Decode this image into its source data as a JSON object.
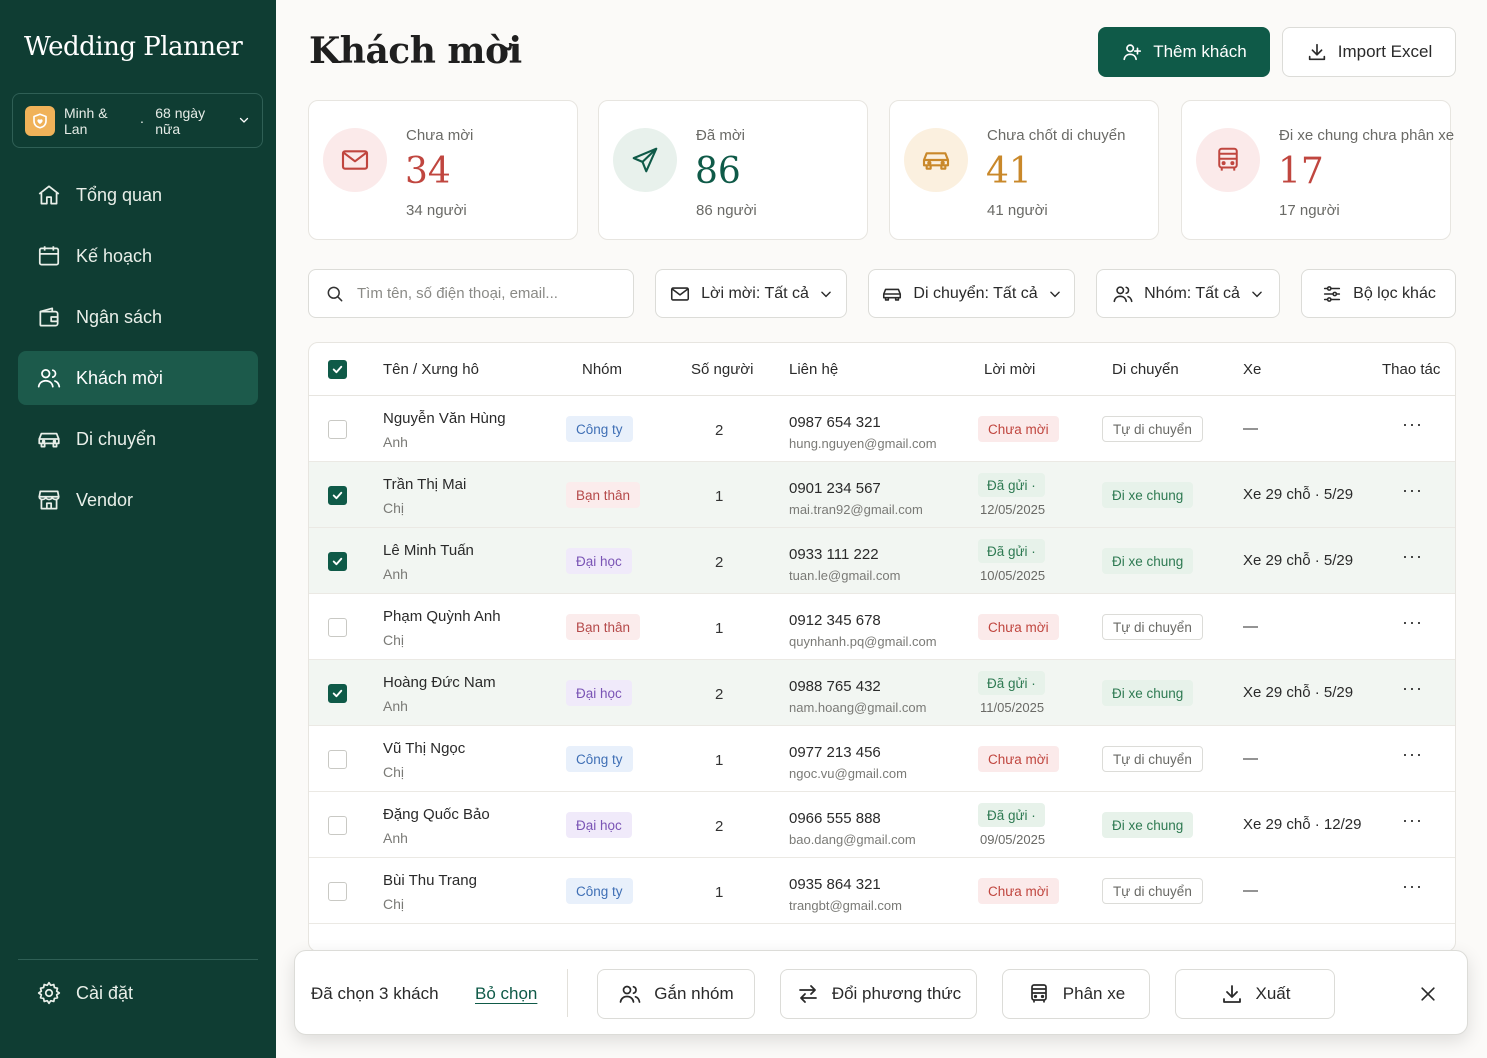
{
  "app": {
    "brand": "Wedding Planner"
  },
  "couple": {
    "names": "Minh & Lan",
    "separator": "·",
    "countdown": "68 ngày nữa"
  },
  "nav": [
    {
      "label": "Tổng quan",
      "icon": "home-icon"
    },
    {
      "label": "Kế hoạch",
      "icon": "calendar-icon"
    },
    {
      "label": "Ngân sách",
      "icon": "wallet-icon"
    },
    {
      "label": "Khách mời",
      "icon": "users-icon",
      "active": true
    },
    {
      "label": "Di chuyển",
      "icon": "car-icon"
    },
    {
      "label": "Vendor",
      "icon": "store-icon"
    }
  ],
  "settings": {
    "label": "Cài đặt"
  },
  "header": {
    "title": "Khách mời",
    "add_label": "Thêm khách",
    "import_label": "Import Excel"
  },
  "stats": [
    {
      "label": "Chưa mời",
      "value": "34",
      "sub": "34 người",
      "color": "#c0463f",
      "bg": "#fbeaea"
    },
    {
      "label": "Đã mời",
      "value": "86",
      "sub": "86 người",
      "color": "#0f5a48",
      "bg": "#e8f1ec"
    },
    {
      "label": "Chưa chốt di chuyển",
      "value": "41",
      "sub": "41 người",
      "color": "#c9882a",
      "bg": "#fbf0df"
    },
    {
      "label": "Đi xe chung chưa phân xe",
      "value": "17",
      "sub": "17 người",
      "color": "#c0463f",
      "bg": "#fbeaea"
    }
  ],
  "filters": {
    "search_placeholder": "Tìm tên, số điện thoại, email...",
    "invite": "Lời mời: Tất cả",
    "transport": "Di chuyển: Tất cả",
    "group": "Nhóm: Tất cả",
    "more": "Bộ lọc khác"
  },
  "table": {
    "columns": [
      "Tên / Xưng hô",
      "Nhóm",
      "Số người",
      "Liên hệ",
      "Lời mời",
      "Di chuyển",
      "Xe",
      "Thao tác"
    ],
    "rows": [
      {
        "selected": false,
        "name": "Nguyễn Văn Hùng",
        "title": "Anh",
        "group": "Công ty",
        "group_type": "congty",
        "count": "2",
        "phone": "0987 654 321",
        "email": "hung.nguyen@gmail.com",
        "invite": "Chưa mời",
        "invite_type": "chua",
        "invite_date": "",
        "transport": "Tự di chuyển",
        "transport_type": "tu",
        "car": "—"
      },
      {
        "selected": true,
        "name": "Trần Thị Mai",
        "title": "Chị",
        "group": "Bạn thân",
        "group_type": "banthan",
        "count": "1",
        "phone": "0901 234 567",
        "email": "mai.tran92@gmail.com",
        "invite": "Đã gửi ·",
        "invite_type": "gui",
        "invite_date": "12/05/2025",
        "transport": "Đi xe chung",
        "transport_type": "chung",
        "car": "Xe 29 chỗ · 5/29"
      },
      {
        "selected": true,
        "name": "Lê Minh Tuấn",
        "title": "Anh",
        "group": "Đại học",
        "group_type": "daihoc",
        "count": "2",
        "phone": "0933 111 222",
        "email": "tuan.le@gmail.com",
        "invite": "Đã gửi ·",
        "invite_type": "gui",
        "invite_date": "10/05/2025",
        "transport": "Đi xe chung",
        "transport_type": "chung",
        "car": "Xe 29 chỗ · 5/29"
      },
      {
        "selected": false,
        "name": "Phạm Quỳnh Anh",
        "title": "Chị",
        "group": "Bạn thân",
        "group_type": "banthan",
        "count": "1",
        "phone": "0912 345 678",
        "email": "quynhanh.pq@gmail.com",
        "invite": "Chưa mời",
        "invite_type": "chua",
        "invite_date": "",
        "transport": "Tự di chuyển",
        "transport_type": "tu",
        "car": "—"
      },
      {
        "selected": true,
        "name": "Hoàng Đức Nam",
        "title": "Anh",
        "group": "Đại học",
        "group_type": "daihoc",
        "count": "2",
        "phone": "0988 765 432",
        "email": "nam.hoang@gmail.com",
        "invite": "Đã gửi ·",
        "invite_type": "gui",
        "invite_date": "11/05/2025",
        "transport": "Đi xe chung",
        "transport_type": "chung",
        "car": "Xe 29 chỗ · 5/29"
      },
      {
        "selected": false,
        "name": "Vũ Thị Ngọc",
        "title": "Chị",
        "group": "Công ty",
        "group_type": "congty",
        "count": "1",
        "phone": "0977 213 456",
        "email": "ngoc.vu@gmail.com",
        "invite": "Chưa mời",
        "invite_type": "chua",
        "invite_date": "",
        "transport": "Tự di chuyển",
        "transport_type": "tu",
        "car": "—"
      },
      {
        "selected": false,
        "name": "Đặng Quốc Bảo",
        "title": "Anh",
        "group": "Đại học",
        "group_type": "daihoc",
        "count": "2",
        "phone": "0966 555 888",
        "email": "bao.dang@gmail.com",
        "invite": "Đã gửi ·",
        "invite_type": "gui",
        "invite_date": "09/05/2025",
        "transport": "Đi xe chung",
        "transport_type": "chung",
        "car": "Xe 29 chỗ · 12/29"
      },
      {
        "selected": false,
        "name": "Bùi Thu Trang",
        "title": "Chị",
        "group": "Công ty",
        "group_type": "congty",
        "count": "1",
        "phone": "0935 864 321",
        "email": "trangbt@gmail.com",
        "invite": "Chưa mời",
        "invite_type": "chua",
        "invite_date": "",
        "transport": "Tự di chuyển",
        "transport_type": "tu",
        "car": "—"
      }
    ],
    "more_glyph": "···"
  },
  "bulk": {
    "selected_text": "Đã chọn 3 khách",
    "deselect": "Bỏ chọn",
    "assign_group": "Gắn nhóm",
    "change_method": "Đổi phương thức",
    "assign_car": "Phân xe",
    "export": "Xuất"
  },
  "colors": {
    "sidebar": "#0f3d33",
    "primary": "#0f5a48",
    "selected_row": "#f2f6f2"
  }
}
